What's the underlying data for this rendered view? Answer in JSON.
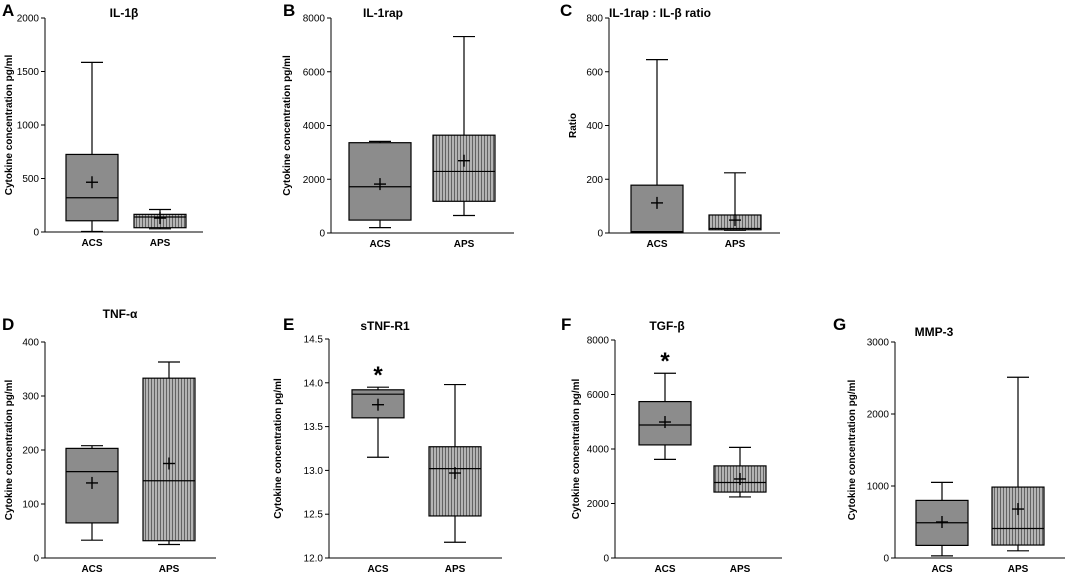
{
  "figure": {
    "colors": {
      "acs_fill": "#8c8c8c",
      "aps_fill": "#b4b4b4",
      "stroke": "#000000"
    }
  },
  "chart_data": [
    {
      "id": "A",
      "letter": "A",
      "type": "box",
      "title": "IL-1β",
      "ylabel": "Cytokine concentration pg/ml",
      "xlabel": "",
      "ylim": [
        0,
        2000
      ],
      "yticks": [
        0,
        500,
        1000,
        1500,
        2000
      ],
      "categories": [
        "ACS",
        "APS"
      ],
      "boxes": [
        {
          "name": "ACS",
          "min": 5,
          "q1": 105,
          "median": 320,
          "q3": 725,
          "max": 1585,
          "mean": 465,
          "pattern": "solid"
        },
        {
          "name": "APS",
          "min": 30,
          "q1": 40,
          "median": 140,
          "q3": 165,
          "max": 210,
          "mean": 130,
          "pattern": "striped"
        }
      ],
      "annotations": []
    },
    {
      "id": "B",
      "letter": "B",
      "type": "box",
      "title": "IL-1rap",
      "ylabel": "Cytokine concentration pg/ml",
      "xlabel": "",
      "ylim": [
        0,
        8000
      ],
      "yticks": [
        0,
        2000,
        4000,
        6000,
        8000
      ],
      "categories": [
        "ACS",
        "APS"
      ],
      "boxes": [
        {
          "name": "ACS",
          "min": 200,
          "q1": 480,
          "median": 1720,
          "q3": 3360,
          "max": 3410,
          "mean": 1820,
          "pattern": "solid"
        },
        {
          "name": "APS",
          "min": 650,
          "q1": 1180,
          "median": 2290,
          "q3": 3640,
          "max": 7310,
          "mean": 2690,
          "pattern": "striped"
        }
      ],
      "annotations": []
    },
    {
      "id": "C",
      "letter": "C",
      "type": "box",
      "title": "IL-1rap : IL-β ratio",
      "ylabel": "Ratio",
      "xlabel": "",
      "ylim": [
        0,
        800
      ],
      "yticks": [
        0,
        200,
        400,
        600,
        800
      ],
      "categories": [
        "ACS",
        "APS"
      ],
      "boxes": [
        {
          "name": "ACS",
          "min": 1,
          "q1": 2,
          "median": 5,
          "q3": 178,
          "max": 645,
          "mean": 112,
          "pattern": "solid"
        },
        {
          "name": "APS",
          "min": 10,
          "q1": 12,
          "median": 17,
          "q3": 67,
          "max": 224,
          "mean": 48,
          "pattern": "striped"
        }
      ],
      "annotations": []
    },
    {
      "id": "D",
      "letter": "D",
      "type": "box",
      "title": "TNF-α",
      "ylabel": "Cytokine concentration pg/ml",
      "xlabel": "",
      "ylim": [
        0,
        400
      ],
      "yticks": [
        0,
        100,
        200,
        300,
        400
      ],
      "categories": [
        "ACS",
        "APS"
      ],
      "boxes": [
        {
          "name": "ACS",
          "min": 33,
          "q1": 65,
          "median": 160,
          "q3": 203,
          "max": 208,
          "mean": 139,
          "pattern": "solid"
        },
        {
          "name": "APS",
          "min": 25,
          "q1": 32,
          "median": 143,
          "q3": 333,
          "max": 363,
          "mean": 175,
          "pattern": "striped"
        }
      ],
      "annotations": []
    },
    {
      "id": "E",
      "letter": "E",
      "type": "box",
      "title": "sTNF-R1",
      "ylabel": "Cytokine concentration pg/ml",
      "xlabel": "",
      "ylim": [
        12.0,
        14.5
      ],
      "yticks": [
        "12.0",
        "12.5",
        "13.0",
        "13.5",
        "14.0",
        "14.5"
      ],
      "categories": [
        "ACS",
        "APS"
      ],
      "boxes": [
        {
          "name": "ACS",
          "min": 13.15,
          "q1": 13.6,
          "median": 13.87,
          "q3": 13.92,
          "max": 13.95,
          "mean": 13.75,
          "pattern": "solid"
        },
        {
          "name": "APS",
          "min": 12.18,
          "q1": 12.48,
          "median": 13.02,
          "q3": 13.27,
          "max": 13.98,
          "mean": 12.97,
          "pattern": "striped"
        }
      ],
      "annotations": [
        {
          "text": "*",
          "category": "ACS"
        }
      ]
    },
    {
      "id": "F",
      "letter": "F",
      "type": "box",
      "title": "TGF-β",
      "ylabel": "Cytokine concentration pg/ml",
      "xlabel": "",
      "ylim": [
        0,
        8000
      ],
      "yticks": [
        0,
        2000,
        4000,
        6000,
        8000
      ],
      "categories": [
        "ACS",
        "APS"
      ],
      "boxes": [
        {
          "name": "ACS",
          "min": 3620,
          "q1": 4150,
          "median": 4880,
          "q3": 5740,
          "max": 6780,
          "mean": 4990,
          "pattern": "solid"
        },
        {
          "name": "APS",
          "min": 2240,
          "q1": 2420,
          "median": 2770,
          "q3": 3380,
          "max": 4060,
          "mean": 2900,
          "pattern": "striped"
        }
      ],
      "annotations": [
        {
          "text": "*",
          "category": "ACS"
        }
      ]
    },
    {
      "id": "G",
      "letter": "G",
      "type": "box",
      "title": "MMP-3",
      "ylabel": "Cytokine concentration pg/ml",
      "xlabel": "",
      "ylim": [
        0,
        3000
      ],
      "yticks": [
        0,
        1000,
        2000,
        3000
      ],
      "categories": [
        "ACS",
        "APS"
      ],
      "boxes": [
        {
          "name": "ACS",
          "min": 30,
          "q1": 175,
          "median": 490,
          "q3": 800,
          "max": 1050,
          "mean": 500,
          "pattern": "solid"
        },
        {
          "name": "APS",
          "min": 100,
          "q1": 180,
          "median": 410,
          "q3": 985,
          "max": 2510,
          "mean": 680,
          "pattern": "striped"
        }
      ],
      "annotations": []
    }
  ]
}
